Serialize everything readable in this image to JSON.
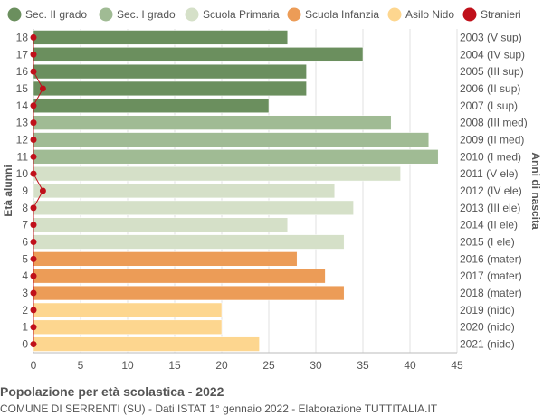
{
  "chart_data": {
    "type": "bar",
    "orientation": "horizontal",
    "title": "Popolazione per età scolastica - 2022",
    "subtitle": "COMUNE DI SERRENTI (SU) - Dati ISTAT 1° gennaio 2022 - Elaborazione TUTTITALIA.IT",
    "ylabel_left": "Età alunni",
    "ylabel_right": "Anni di nascita",
    "xlim": [
      0,
      45
    ],
    "xticks": [
      0,
      5,
      10,
      15,
      20,
      25,
      30,
      35,
      40,
      45
    ],
    "grid": true,
    "legend_position": "top",
    "legend": [
      {
        "name": "Sec. II grado",
        "color": "#6b8f5e"
      },
      {
        "name": "Sec. I grado",
        "color": "#a0bb94"
      },
      {
        "name": "Scuola Primaria",
        "color": "#d5e0c8"
      },
      {
        "name": "Scuola Infanzia",
        "color": "#ec9c57"
      },
      {
        "name": "Asilo Nido",
        "color": "#fdd68f"
      },
      {
        "name": "Stranieri",
        "color": "#c0101a"
      }
    ],
    "rows": [
      {
        "age": "18",
        "birth": "2003 (V sup)",
        "value": 27,
        "stranieri": 0,
        "group": 0
      },
      {
        "age": "17",
        "birth": "2004 (IV sup)",
        "value": 35,
        "stranieri": 0,
        "group": 0
      },
      {
        "age": "16",
        "birth": "2005 (III sup)",
        "value": 29,
        "stranieri": 0,
        "group": 0
      },
      {
        "age": "15",
        "birth": "2006 (II sup)",
        "value": 29,
        "stranieri": 1,
        "group": 0
      },
      {
        "age": "14",
        "birth": "2007 (I sup)",
        "value": 25,
        "stranieri": 0,
        "group": 0
      },
      {
        "age": "13",
        "birth": "2008 (III med)",
        "value": 38,
        "stranieri": 0,
        "group": 1
      },
      {
        "age": "12",
        "birth": "2009 (II med)",
        "value": 42,
        "stranieri": 0,
        "group": 1
      },
      {
        "age": "11",
        "birth": "2010 (I med)",
        "value": 43,
        "stranieri": 0,
        "group": 1
      },
      {
        "age": "10",
        "birth": "2011 (V ele)",
        "value": 39,
        "stranieri": 0,
        "group": 2
      },
      {
        "age": "9",
        "birth": "2012 (IV ele)",
        "value": 32,
        "stranieri": 1,
        "group": 2
      },
      {
        "age": "8",
        "birth": "2013 (III ele)",
        "value": 34,
        "stranieri": 0,
        "group": 2
      },
      {
        "age": "7",
        "birth": "2014 (II ele)",
        "value": 27,
        "stranieri": 0,
        "group": 2
      },
      {
        "age": "6",
        "birth": "2015 (I ele)",
        "value": 33,
        "stranieri": 0,
        "group": 2
      },
      {
        "age": "5",
        "birth": "2016 (mater)",
        "value": 28,
        "stranieri": 0,
        "group": 3
      },
      {
        "age": "4",
        "birth": "2017 (mater)",
        "value": 31,
        "stranieri": 0,
        "group": 3
      },
      {
        "age": "3",
        "birth": "2018 (mater)",
        "value": 33,
        "stranieri": 0,
        "group": 3
      },
      {
        "age": "2",
        "birth": "2019 (nido)",
        "value": 20,
        "stranieri": 0,
        "group": 4
      },
      {
        "age": "1",
        "birth": "2020 (nido)",
        "value": 20,
        "stranieri": 0,
        "group": 4
      },
      {
        "age": "0",
        "birth": "2021 (nido)",
        "value": 24,
        "stranieri": 0,
        "group": 4
      }
    ]
  }
}
